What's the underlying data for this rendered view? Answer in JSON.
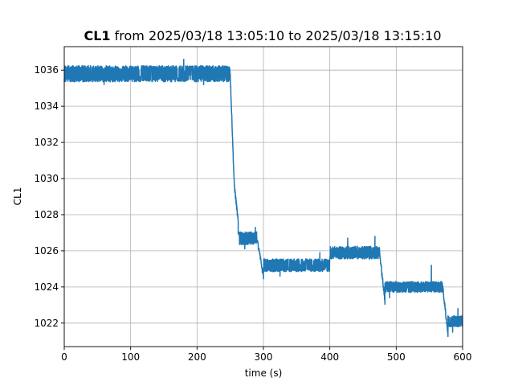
{
  "chart_data": {
    "type": "line",
    "title": {
      "bold": "CL1",
      "rest": " from 2025/03/18 13:05:10 to 2025/03/18 13:15:10"
    },
    "xlabel": "time (s)",
    "ylabel": "CL1",
    "xlim": [
      0,
      600
    ],
    "ylim": [
      1020.7,
      1037.3
    ],
    "xticks": [
      0,
      100,
      200,
      300,
      400,
      500,
      600
    ],
    "yticks": [
      1022,
      1024,
      1026,
      1028,
      1030,
      1032,
      1034,
      1036
    ],
    "grid": true,
    "series": [
      {
        "color": "#1f77b4",
        "segments": [
          {
            "x0": 0,
            "x1": 250,
            "center": 1035.8,
            "noise": 0.45,
            "spikes": [
              [
                180,
                1036.6
              ],
              [
                60,
                1035.2
              ],
              [
                210,
                1035.2
              ]
            ]
          },
          {
            "x0": 250,
            "x1": 256,
            "from": 1035.8,
            "to": 1029.7
          },
          {
            "x0": 256,
            "x1": 262,
            "from": 1029.7,
            "to": 1027.6
          },
          {
            "x0": 262,
            "x1": 290,
            "center": 1026.7,
            "noise": 0.35,
            "spikes": [
              [
                288,
                1027.3
              ],
              [
                272,
                1026.1
              ]
            ]
          },
          {
            "x0": 290,
            "x1": 300,
            "from": 1026.7,
            "to": 1024.6
          },
          {
            "x0": 300,
            "x1": 400,
            "center": 1025.2,
            "noise": 0.35,
            "spikes": [
              [
                325,
                1024.6
              ],
              [
                385,
                1025.9
              ]
            ]
          },
          {
            "x0": 400,
            "x1": 475,
            "center": 1025.9,
            "noise": 0.35,
            "spikes": [
              [
                427,
                1026.7
              ],
              [
                468,
                1026.8
              ]
            ]
          },
          {
            "x0": 475,
            "x1": 483,
            "from": 1025.9,
            "to": 1023.2
          },
          {
            "x0": 483,
            "x1": 570,
            "center": 1024.0,
            "noise": 0.3,
            "spikes": [
              [
                553,
                1025.2
              ],
              [
                490,
                1023.4
              ]
            ]
          },
          {
            "x0": 570,
            "x1": 578,
            "from": 1024.0,
            "to": 1021.4
          },
          {
            "x0": 578,
            "x1": 600,
            "center": 1022.1,
            "noise": 0.3,
            "spikes": [
              [
                593,
                1022.8
              ],
              [
                585,
                1021.5
              ]
            ]
          }
        ]
      }
    ]
  }
}
